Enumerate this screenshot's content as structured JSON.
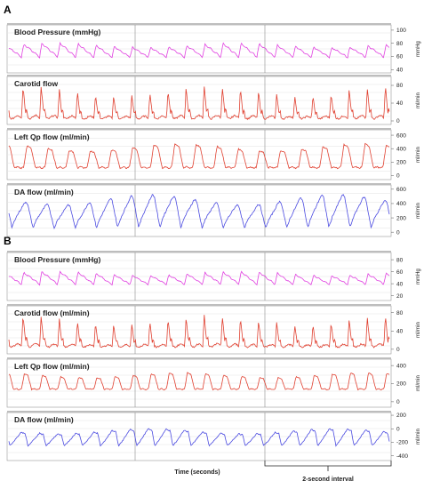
{
  "chart_data": [
    {
      "type": "line",
      "panel": "A",
      "xlabel": "",
      "channels": [
        {
          "title": "Blood Pressure (mmHg)",
          "unit": "mmHg",
          "ticks": [
            40,
            60,
            80,
            100
          ],
          "ylim": [
            35,
            108
          ],
          "color": "#e040e0",
          "series": {
            "name": "",
            "min": 58,
            "max": 80,
            "beats": 21,
            "shape": "bp"
          }
        },
        {
          "title": "Carotid flow",
          "unit": "ml/min",
          "ticks": [
            0,
            40,
            80
          ],
          "ylim": [
            -8,
            100
          ],
          "color": "#e04030",
          "series": {
            "name": "",
            "min": 5,
            "max": 80,
            "beats": 21,
            "shape": "carotid"
          }
        },
        {
          "title": "Left Qp flow (ml/min)",
          "unit": "ml/min",
          "ticks": [
            0,
            200,
            400,
            600
          ],
          "ylim": [
            -60,
            680
          ],
          "color": "#e04030",
          "series": {
            "name": "",
            "min": 120,
            "max": 470,
            "beats": 18,
            "shape": "pulse"
          }
        },
        {
          "title": "DA flow (ml/min)",
          "unit": "ml/min",
          "ticks": [
            0,
            200,
            400,
            600
          ],
          "ylim": [
            -60,
            660
          ],
          "color": "#4a4ae0",
          "series": {
            "name": "",
            "min": 50,
            "max": 520,
            "beats": 18,
            "shape": "da"
          }
        }
      ]
    },
    {
      "type": "line",
      "panel": "B",
      "xlabel": "Time (seconds)",
      "annotation": "2-second interval",
      "channels": [
        {
          "title": "Blood Pressure (mmHg)",
          "unit": "mmHg",
          "ticks": [
            20,
            40,
            60,
            80
          ],
          "ylim": [
            12,
            92
          ],
          "color": "#e040e0",
          "series": {
            "name": "",
            "min": 38,
            "max": 60,
            "beats": 21,
            "shape": "bp"
          }
        },
        {
          "title": "Carotid flow (ml/min)",
          "unit": "ml/min",
          "ticks": [
            0,
            40,
            80
          ],
          "ylim": [
            -10,
            95
          ],
          "color": "#e04030",
          "series": {
            "name": "",
            "min": 5,
            "max": 75,
            "beats": 21,
            "shape": "carotid"
          }
        },
        {
          "title": "Left Qp flow (ml/min)",
          "unit": "ml/min",
          "ticks": [
            0,
            200,
            400
          ],
          "ylim": [
            -60,
            470
          ],
          "color": "#e04030",
          "series": {
            "name": "",
            "min": 140,
            "max": 320,
            "beats": 21,
            "shape": "pulse"
          }
        },
        {
          "title": "DA flow (ml/min)",
          "unit": "ml/min",
          "ticks": [
            -400,
            -200,
            0,
            200
          ],
          "ylim": [
            -470,
            240
          ],
          "color": "#4a4ae0",
          "series": {
            "name": "",
            "min": -250,
            "max": 20,
            "beats": 21,
            "shape": "daneg"
          }
        }
      ]
    }
  ]
}
